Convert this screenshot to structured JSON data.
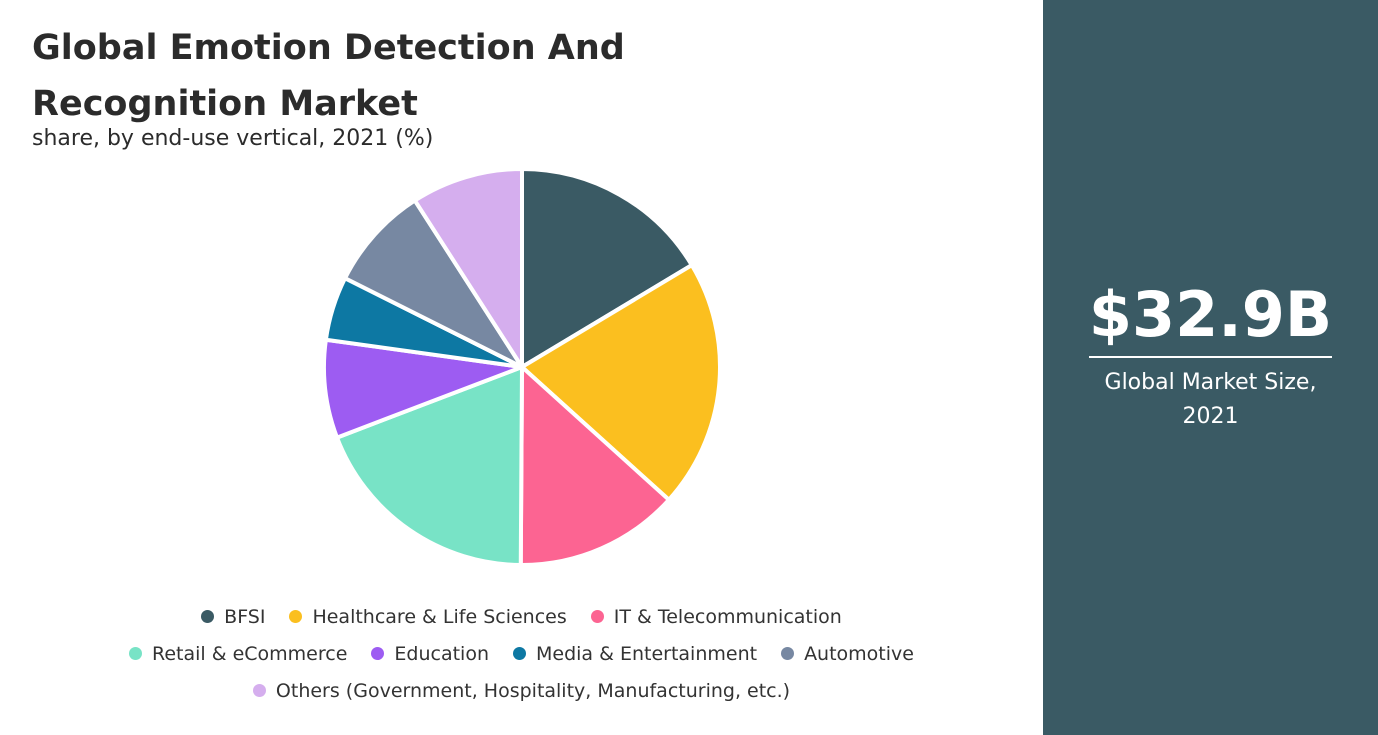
{
  "chart_data": {
    "type": "pie",
    "title": "Global Emotion Detection And Recognition Market",
    "subtitle": "share, by end-use vertical, 2021 (%)",
    "categories": [
      "BFSI",
      "Healthcare & Life Sciences",
      "IT & Telecommunication",
      "Retail & eCommerce",
      "Education",
      "Media & Entertainment",
      "Automotive",
      "Others (Government, Hospitality, Manufacturing, etc.)"
    ],
    "values": [
      16.4,
      20.3,
      13.4,
      19.1,
      8.0,
      5.2,
      8.5,
      9.1
    ],
    "colors": [
      "#3a5a64",
      "#fbbf1f",
      "#fc6492",
      "#78e3c6",
      "#9d5cf2",
      "#0d78a3",
      "#7788a2",
      "#d5aeee"
    ]
  },
  "panel": {
    "value": "$32.9B",
    "label": "Global Market Size, 2021"
  }
}
